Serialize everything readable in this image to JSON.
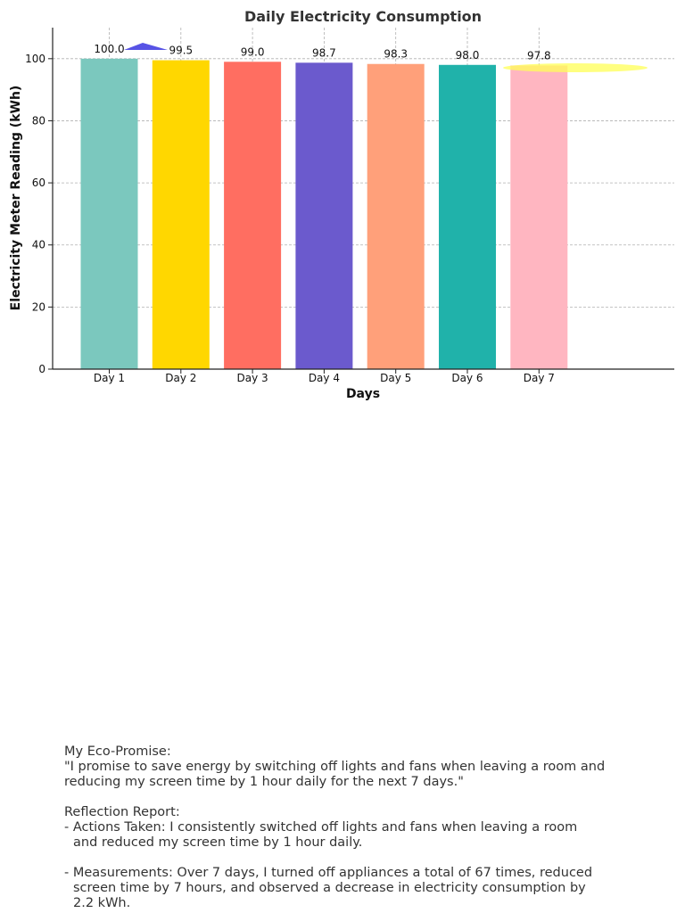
{
  "chart_data": {
    "type": "bar",
    "title": "Daily Electricity Consumption",
    "xlabel": "Days",
    "ylabel": "Electricity Meter Reading (kWh)",
    "categories": [
      "Day 1",
      "Day 2",
      "Day 3",
      "Day 4",
      "Day 5",
      "Day 6",
      "Day 7"
    ],
    "values": [
      100.0,
      99.5,
      99.0,
      98.7,
      98.3,
      98.0,
      97.8
    ],
    "value_labels": [
      "100.0",
      "99.5",
      "99.0",
      "98.7",
      "98.3",
      "98.0",
      "97.8"
    ],
    "colors": [
      "#7bc8be",
      "#ffd700",
      "#ff6e61",
      "#6b5acd",
      "#ffa07a",
      "#20b2aa",
      "#ffb6c1"
    ],
    "ylim": [
      0,
      110
    ],
    "yticks": [
      0,
      20,
      40,
      60,
      80,
      100
    ],
    "grid": true
  },
  "annotations": {
    "triangle_color": "#3a35e0",
    "ellipse_color": "#ffff55"
  },
  "report": {
    "promise_heading": "My Eco-Promise:",
    "promise_line1": "\"I promise to save energy by switching off lights and fans when leaving a room and",
    "promise_line2": "reducing my screen time by 1 hour daily for the next 7 days.\"",
    "reflection_heading": "Reflection Report:",
    "actions_line1": "- Actions Taken: I consistently switched off lights and fans when leaving a room",
    "actions_line2": "and reduced my screen time by 1 hour daily.",
    "measurements_line1": "- Measurements: Over 7 days, I turned off appliances a total of 67 times, reduced",
    "measurements_line2": "screen time by 7 hours, and observed a decrease in electricity consumption by",
    "measurements_line3": "2.2 kWh."
  }
}
